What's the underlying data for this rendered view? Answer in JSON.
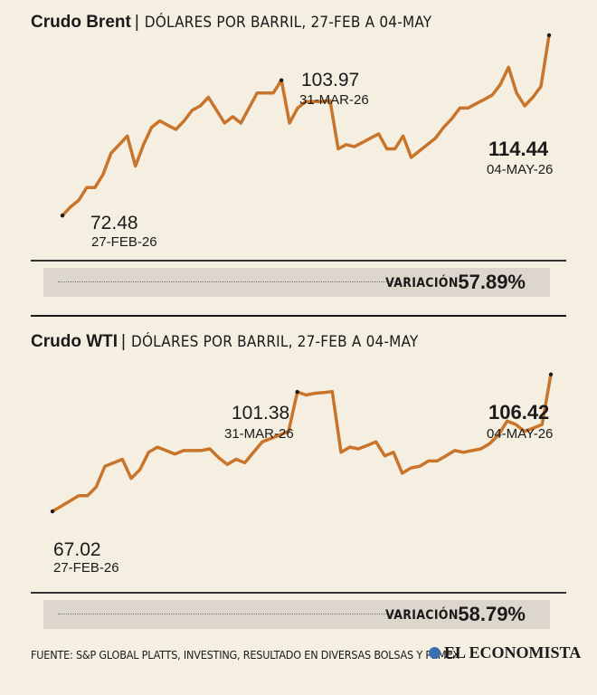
{
  "chart_data": [
    {
      "type": "line",
      "title": "Crudo Brent",
      "subtitle": "DÓLARES POR BARRIL, 27-FEB A 04-MAY",
      "color": "#c8742a",
      "values": [
        72.48,
        74.5,
        76.0,
        79.0,
        79.0,
        82.0,
        87.0,
        89.0,
        91.0,
        84.0,
        89.0,
        93.0,
        94.5,
        93.5,
        92.5,
        94.5,
        97.0,
        98.0,
        100.0,
        97.0,
        94.0,
        95.5,
        94.0,
        97.5,
        101.0,
        101.0,
        101.0,
        103.97,
        94.0,
        97.5,
        99.0,
        99.0,
        99.0,
        99.2,
        88.0,
        89.0,
        88.5,
        89.5,
        90.5,
        91.5,
        88.0,
        88.0,
        91.0,
        86.0,
        87.5,
        89.0,
        90.5,
        93.0,
        95.0,
        97.5,
        97.5,
        98.5,
        99.5,
        100.5,
        103.0,
        107.0,
        101.0,
        98.0,
        100.0,
        102.5,
        114.44
      ],
      "ylim": [
        70,
        110
      ],
      "start": {
        "value": "72.48",
        "date": "27-FEB-26"
      },
      "peak": {
        "value": "103.97",
        "date": "31-MAR-26"
      },
      "end": {
        "value": "114.44",
        "date": "04-MAY-26"
      },
      "variation": {
        "label": "VARIACIÓN:",
        "value": "57.89%"
      }
    },
    {
      "type": "line",
      "title": "Crudo WTI",
      "subtitle": "DÓLARES POR BARRIL, 27-FEB A 04-MAY",
      "color": "#c8742a",
      "values": [
        67.02,
        68.5,
        70.0,
        71.5,
        71.5,
        74.0,
        80.0,
        81.0,
        82.0,
        76.5,
        79.0,
        84.0,
        85.5,
        84.5,
        83.5,
        84.5,
        84.5,
        84.5,
        85.0,
        82.5,
        80.5,
        82.0,
        81.0,
        84.0,
        87.0,
        88.0,
        89.0,
        90.0,
        101.38,
        100.5,
        101.0,
        101.2,
        101.5,
        84.0,
        85.5,
        85.0,
        86.0,
        87.0,
        83.0,
        84.0,
        78.0,
        79.5,
        80.0,
        81.5,
        81.5,
        83.0,
        84.5,
        84.0,
        84.5,
        85.0,
        86.5,
        89.0,
        93.0,
        92.0,
        90.0,
        91.0,
        92.0,
        106.42
      ],
      "ylim": [
        60,
        110
      ],
      "start": {
        "value": "67.02",
        "date": "27-FEB-26"
      },
      "peak": {
        "value": "101.38",
        "date": "31-MAR-26"
      },
      "end": {
        "value": "106.42",
        "date": "04-MAY-26"
      },
      "variation": {
        "label": "VARIACIÓN:",
        "value": "58.79%"
      }
    }
  ],
  "footer": {
    "source": "FUENTE: S&P GLOBAL PLATTS, INVESTING, RESULTADO EN DIVERSAS BOLSAS Y PEMEX",
    "brand": "EL ECONOMISTA"
  }
}
